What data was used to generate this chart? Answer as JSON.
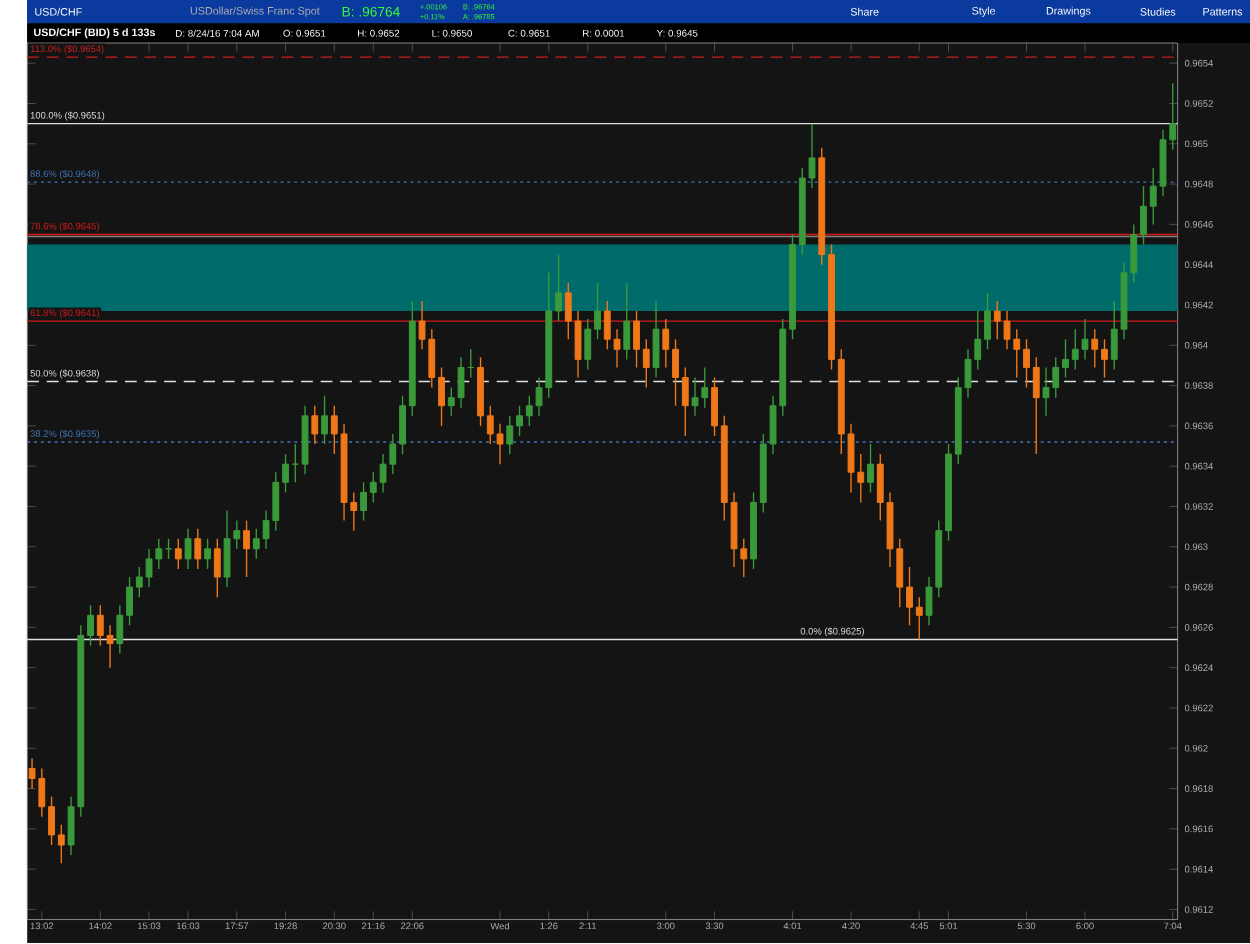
{
  "chart_data": {
    "type": "candlestick",
    "title": "USD/CHF (BID) 5 d 133s",
    "subtitle": "USDollar/Swiss Franc Spot",
    "annotations": [
      "USD/CHF",
      "B: .96764",
      "+.00106",
      "+0.11%",
      "B: .96764",
      "A: .96785",
      "Share",
      "Style",
      "Drawings",
      "Studies",
      "Patterns",
      "D: 8/24/16 7:04 AM",
      "O: 0.9651",
      "H: 0.9652",
      "L: 0.9650",
      "C: 0.9651",
      "R: 0.0001",
      "Y: 0.9645"
    ],
    "categories": [
      null,
      "13:02",
      null,
      null,
      null,
      null,
      null,
      "14:02",
      null,
      null,
      null,
      null,
      "15:03",
      null,
      null,
      null,
      "16:03",
      null,
      null,
      null,
      null,
      "17:57",
      null,
      null,
      null,
      null,
      "19:28",
      null,
      null,
      null,
      null,
      "20:30",
      null,
      null,
      null,
      "21:16",
      null,
      null,
      null,
      "22:06",
      null,
      null,
      null,
      null,
      null,
      null,
      null,
      null,
      "Wed",
      null,
      null,
      null,
      null,
      "1:26",
      null,
      null,
      null,
      "2:11",
      null,
      null,
      null,
      null,
      null,
      null,
      null,
      "3:00",
      null,
      null,
      null,
      null,
      "3:30",
      null,
      null,
      null,
      null,
      null,
      null,
      null,
      "4:01",
      null,
      null,
      null,
      null,
      null,
      "4:20",
      null,
      null,
      null,
      null,
      null,
      null,
      "4:45",
      null,
      null,
      "5:01",
      null,
      null,
      null,
      null,
      null,
      null,
      null,
      "5:30",
      null,
      null,
      null,
      null,
      null,
      "6:00",
      null,
      null,
      null,
      null,
      null,
      null,
      null,
      null,
      "7:04"
    ],
    "ohlc": [
      [
        0.9619,
        0.96195,
        0.9618,
        0.96185
      ],
      [
        0.96185,
        0.9619,
        0.96166,
        0.96171
      ],
      [
        0.96171,
        0.96176,
        0.96152,
        0.96157
      ],
      [
        0.96157,
        0.96162,
        0.96143,
        0.96152
      ],
      [
        0.96152,
        0.96176,
        0.96147,
        0.96171
      ],
      [
        0.96171,
        0.96261,
        0.96166,
        0.96256
      ],
      [
        0.96256,
        0.96271,
        0.96251,
        0.96266
      ],
      [
        0.96266,
        0.96271,
        0.96251,
        0.96256
      ],
      [
        0.96256,
        0.96261,
        0.9624,
        0.96252
      ],
      [
        0.96252,
        0.96271,
        0.96247,
        0.96266
      ],
      [
        0.96266,
        0.96285,
        0.96261,
        0.9628
      ],
      [
        0.9628,
        0.9629,
        0.96275,
        0.96285
      ],
      [
        0.96285,
        0.96299,
        0.9628,
        0.96294
      ],
      [
        0.96294,
        0.96304,
        0.96289,
        0.96299
      ],
      [
        0.96299,
        0.96304,
        0.96294,
        0.96299
      ],
      [
        0.96299,
        0.96304,
        0.96289,
        0.96294
      ],
      [
        0.96294,
        0.96309,
        0.96289,
        0.96304
      ],
      [
        0.96304,
        0.96309,
        0.96289,
        0.96294
      ],
      [
        0.96294,
        0.96304,
        0.96289,
        0.96299
      ],
      [
        0.96299,
        0.96304,
        0.96275,
        0.96285
      ],
      [
        0.96285,
        0.96318,
        0.9628,
        0.96304
      ],
      [
        0.96304,
        0.96313,
        0.96299,
        0.96308
      ],
      [
        0.96308,
        0.96313,
        0.96285,
        0.96299
      ],
      [
        0.96299,
        0.96309,
        0.96294,
        0.96304
      ],
      [
        0.96304,
        0.96318,
        0.96299,
        0.96313
      ],
      [
        0.96313,
        0.96337,
        0.96308,
        0.96332
      ],
      [
        0.96332,
        0.96346,
        0.96327,
        0.96341
      ],
      [
        0.96341,
        0.96351,
        0.96332,
        0.96341
      ],
      [
        0.96341,
        0.9637,
        0.96336,
        0.96365
      ],
      [
        0.96365,
        0.9637,
        0.96351,
        0.96356
      ],
      [
        0.96356,
        0.96375,
        0.96351,
        0.96365
      ],
      [
        0.96365,
        0.9637,
        0.96346,
        0.96356
      ],
      [
        0.96356,
        0.96361,
        0.96313,
        0.96322
      ],
      [
        0.96322,
        0.96327,
        0.96308,
        0.96318
      ],
      [
        0.96318,
        0.96332,
        0.96313,
        0.96327
      ],
      [
        0.96327,
        0.96337,
        0.96322,
        0.96332
      ],
      [
        0.96332,
        0.96346,
        0.96327,
        0.96341
      ],
      [
        0.96341,
        0.96356,
        0.96336,
        0.96351
      ],
      [
        0.96351,
        0.96375,
        0.96346,
        0.9637
      ],
      [
        0.9637,
        0.96422,
        0.96365,
        0.96412
      ],
      [
        0.96412,
        0.96422,
        0.96398,
        0.96403
      ],
      [
        0.96403,
        0.96408,
        0.96379,
        0.96384
      ],
      [
        0.96384,
        0.96389,
        0.9636,
        0.9637
      ],
      [
        0.9637,
        0.96379,
        0.96365,
        0.96374
      ],
      [
        0.96374,
        0.96394,
        0.96369,
        0.96389
      ],
      [
        0.96389,
        0.96398,
        0.96384,
        0.96389
      ],
      [
        0.96389,
        0.96394,
        0.9636,
        0.96365
      ],
      [
        0.96365,
        0.9637,
        0.96351,
        0.96356
      ],
      [
        0.96356,
        0.96361,
        0.96341,
        0.96351
      ],
      [
        0.96351,
        0.96365,
        0.96346,
        0.9636
      ],
      [
        0.9636,
        0.9637,
        0.96355,
        0.96365
      ],
      [
        0.96365,
        0.96375,
        0.9636,
        0.9637
      ],
      [
        0.9637,
        0.96384,
        0.96365,
        0.96379
      ],
      [
        0.96379,
        0.96436,
        0.96374,
        0.96417
      ],
      [
        0.96417,
        0.96445,
        0.96412,
        0.96426
      ],
      [
        0.96426,
        0.96431,
        0.96403,
        0.96412
      ],
      [
        0.96412,
        0.96417,
        0.96384,
        0.96393
      ],
      [
        0.96393,
        0.96413,
        0.96388,
        0.96408
      ],
      [
        0.96408,
        0.96431,
        0.96403,
        0.96417
      ],
      [
        0.96417,
        0.96422,
        0.96398,
        0.96403
      ],
      [
        0.96403,
        0.96408,
        0.96389,
        0.96398
      ],
      [
        0.96398,
        0.96431,
        0.96393,
        0.96412
      ],
      [
        0.96412,
        0.96417,
        0.96389,
        0.96398
      ],
      [
        0.96398,
        0.96403,
        0.96379,
        0.96389
      ],
      [
        0.96389,
        0.96422,
        0.96384,
        0.96408
      ],
      [
        0.96408,
        0.96413,
        0.96389,
        0.96398
      ],
      [
        0.96398,
        0.96403,
        0.9637,
        0.96384
      ],
      [
        0.96384,
        0.96389,
        0.96355,
        0.9637
      ],
      [
        0.9637,
        0.96384,
        0.96365,
        0.96374
      ],
      [
        0.96374,
        0.96389,
        0.96369,
        0.96379
      ],
      [
        0.96379,
        0.96384,
        0.96355,
        0.9636
      ],
      [
        0.9636,
        0.96365,
        0.96313,
        0.96322
      ],
      [
        0.96322,
        0.96327,
        0.9629,
        0.96299
      ],
      [
        0.96299,
        0.96304,
        0.96285,
        0.96294
      ],
      [
        0.96294,
        0.96327,
        0.96289,
        0.96322
      ],
      [
        0.96322,
        0.96356,
        0.96317,
        0.96351
      ],
      [
        0.96351,
        0.96375,
        0.96346,
        0.9637
      ],
      [
        0.9637,
        0.96413,
        0.96365,
        0.96408
      ],
      [
        0.96408,
        0.96455,
        0.96403,
        0.9645
      ],
      [
        0.9645,
        0.96488,
        0.96445,
        0.96483
      ],
      [
        0.96483,
        0.9651,
        0.96478,
        0.96493
      ],
      [
        0.96493,
        0.96498,
        0.9644,
        0.96445
      ],
      [
        0.96445,
        0.9645,
        0.96388,
        0.96393
      ],
      [
        0.96393,
        0.96398,
        0.96346,
        0.96356
      ],
      [
        0.96356,
        0.96361,
        0.96327,
        0.96337
      ],
      [
        0.96337,
        0.96346,
        0.96322,
        0.96332
      ],
      [
        0.96332,
        0.96351,
        0.96327,
        0.96341
      ],
      [
        0.96341,
        0.96346,
        0.96313,
        0.96322
      ],
      [
        0.96322,
        0.96327,
        0.9629,
        0.96299
      ],
      [
        0.96299,
        0.96304,
        0.9627,
        0.9628
      ],
      [
        0.9628,
        0.9629,
        0.96261,
        0.9627
      ],
      [
        0.9627,
        0.96275,
        0.96254,
        0.96266
      ],
      [
        0.96266,
        0.96285,
        0.96261,
        0.9628
      ],
      [
        0.9628,
        0.96313,
        0.96275,
        0.96308
      ],
      [
        0.96308,
        0.96351,
        0.96303,
        0.96346
      ],
      [
        0.96346,
        0.96384,
        0.96341,
        0.96379
      ],
      [
        0.96379,
        0.96398,
        0.96374,
        0.96393
      ],
      [
        0.96393,
        0.96417,
        0.96388,
        0.96403
      ],
      [
        0.96403,
        0.96426,
        0.96398,
        0.96417
      ],
      [
        0.96417,
        0.96422,
        0.96403,
        0.96412
      ],
      [
        0.96412,
        0.96417,
        0.96398,
        0.96403
      ],
      [
        0.96403,
        0.96408,
        0.96384,
        0.96398
      ],
      [
        0.96398,
        0.96403,
        0.96379,
        0.96389
      ],
      [
        0.96389,
        0.96394,
        0.96346,
        0.96374
      ],
      [
        0.96374,
        0.96389,
        0.96365,
        0.96379
      ],
      [
        0.96379,
        0.96394,
        0.96374,
        0.96389
      ],
      [
        0.96389,
        0.96403,
        0.96384,
        0.96393
      ],
      [
        0.96393,
        0.96408,
        0.96388,
        0.96398
      ],
      [
        0.96398,
        0.96413,
        0.96393,
        0.96403
      ],
      [
        0.96403,
        0.96408,
        0.96389,
        0.96398
      ],
      [
        0.96398,
        0.96403,
        0.96384,
        0.96393
      ],
      [
        0.96393,
        0.96422,
        0.96388,
        0.96408
      ],
      [
        0.96408,
        0.96441,
        0.96403,
        0.96436
      ],
      [
        0.96436,
        0.9646,
        0.96431,
        0.96455
      ],
      [
        0.96455,
        0.96479,
        0.9645,
        0.96469
      ],
      [
        0.96469,
        0.96488,
        0.9646,
        0.96479
      ],
      [
        0.96479,
        0.96507,
        0.96474,
        0.96502
      ],
      [
        0.96502,
        0.9653,
        0.96497,
        0.9651
      ]
    ],
    "ylim": [
      0.96115,
      0.9655
    ],
    "yticks": [
      0.9612,
      0.9614,
      0.9616,
      0.9618,
      0.962,
      0.9622,
      0.9624,
      0.9626,
      0.9628,
      0.963,
      0.9632,
      0.9634,
      0.9636,
      0.9638,
      0.964,
      0.9642,
      0.9644,
      0.9646,
      0.9648,
      0.965,
      0.9652,
      0.9654
    ],
    "bands": [
      {
        "axis": "y",
        "from": 0.96417,
        "to": 0.9645,
        "color": "#006b6b"
      }
    ],
    "ref_lines": [
      {
        "axis": "y",
        "value": 0.96454,
        "color": "#808080",
        "line_style": "solid"
      },
      {
        "axis": "y",
        "value": 0.96543,
        "label": "113.0% ($0.9654)",
        "color": "#c81e1e",
        "line_style": "dashed"
      },
      {
        "axis": "y",
        "value": 0.9651,
        "label": "100.0% ($0.9651)",
        "color": "#e0e0e0",
        "line_style": "solid"
      },
      {
        "axis": "y",
        "value": 0.96481,
        "label": "88.6% ($0.9648)",
        "color": "#3f74b5",
        "line_style": "dotted"
      },
      {
        "axis": "y",
        "value": 0.96455,
        "label": "78.6% ($0.9645)",
        "color": "#d01818",
        "line_style": "solid"
      },
      {
        "axis": "y",
        "value": 0.96412,
        "label": "61.8% ($0.9641)",
        "color": "#d01818",
        "line_style": "solid"
      },
      {
        "axis": "y",
        "value": 0.96382,
        "label": "50.0% ($0.9638)",
        "color": "#e0e0e0",
        "line_style": "dashed"
      },
      {
        "axis": "y",
        "value": 0.96352,
        "label": "38.2% ($0.9635)",
        "color": "#3f74b5",
        "line_style": "dotted"
      },
      {
        "axis": "y",
        "value": 0.96254,
        "label": "0.0% ($0.9625)",
        "color": "#e0e0e0",
        "line_style": "solid"
      }
    ]
  }
}
